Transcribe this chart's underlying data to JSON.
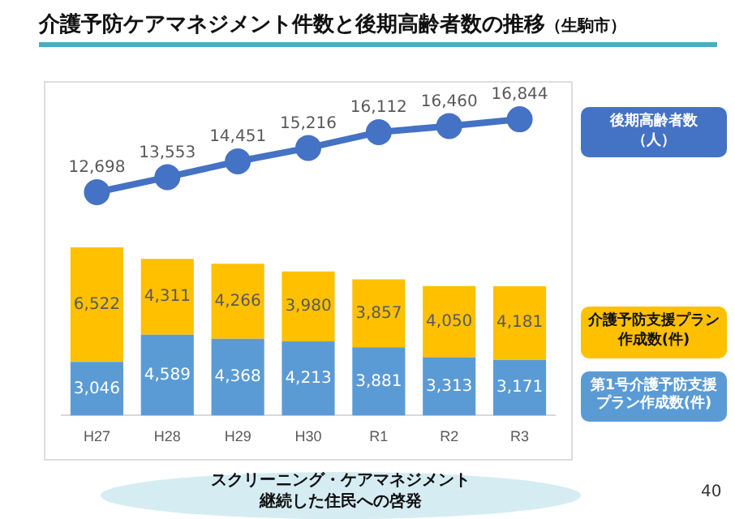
{
  "chart_data": {
    "type": "bar",
    "title": "介護予防ケアマネジメント件数と後期高齢者数の推移",
    "subtitle": "（生駒市）",
    "categories": [
      "H27",
      "H28",
      "H29",
      "H30",
      "R1",
      "R2",
      "R3"
    ],
    "series": [
      {
        "name": "第1号介護予防支援プラン作成数(件)",
        "color": "#5b9bd5",
        "values": [
          3046,
          4589,
          4368,
          4213,
          3881,
          3313,
          3171
        ],
        "value_labels": [
          "3,046",
          "4,589",
          "4,368",
          "4,213",
          "3,881",
          "3,313",
          "3,171"
        ]
      },
      {
        "name": "介護予防支援プラン作成数(件)",
        "color": "#ffc000",
        "values": [
          6522,
          4311,
          4266,
          3980,
          3857,
          4050,
          4181
        ],
        "value_labels": [
          "6,522",
          "4,311",
          "4,266",
          "3,980",
          "3,857",
          "4,050",
          "4,181"
        ]
      },
      {
        "name": "後期高齢者数（人）",
        "type": "line",
        "color": "#4472c4",
        "marker": "circle",
        "values": [
          12698,
          13553,
          14451,
          15216,
          16112,
          16460,
          16844
        ],
        "value_labels": [
          "12,698",
          "13,553",
          "14,451",
          "15,216",
          "16,112",
          "16,460",
          "16,844"
        ]
      }
    ],
    "stacked": true,
    "tick_labels": "x",
    "grid": false,
    "legend": "right",
    "annotations": [
      "スクリーニング・ケアマネジメント継続した住民への啓発",
      "40"
    ]
  }
}
